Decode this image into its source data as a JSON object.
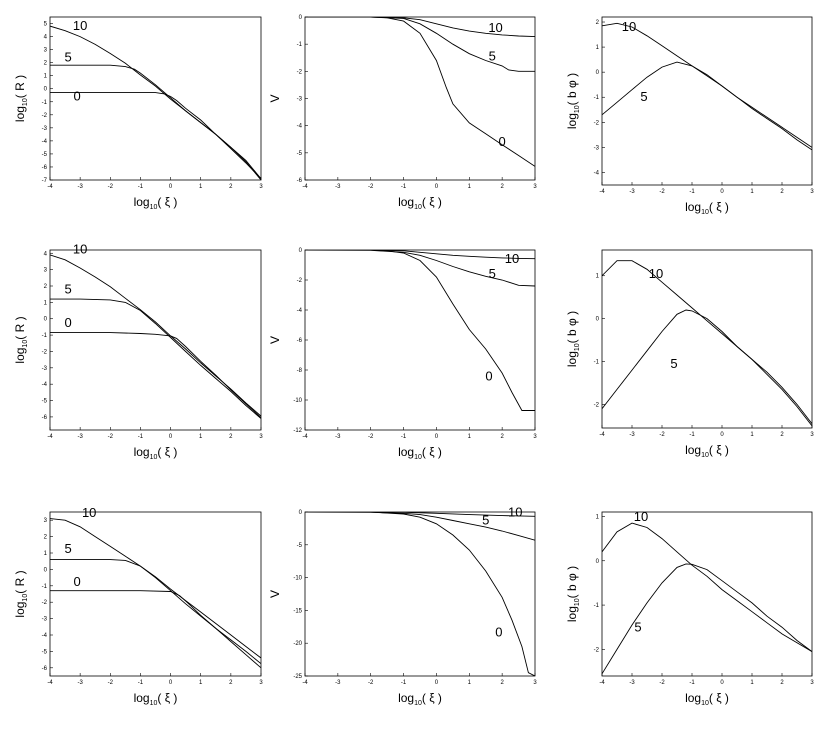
{
  "chart_data": [
    {
      "type": "line",
      "xlabel": "log10( ξ )",
      "ylabel": "log10( R )",
      "xlim": [
        -4,
        3
      ],
      "ylim": [
        -7,
        5.5
      ],
      "xticks": [
        -4,
        -3,
        -2,
        -1,
        0,
        1,
        2,
        3
      ],
      "yticks": [
        -7,
        -6,
        -5,
        -4,
        -3,
        -2,
        -1,
        0,
        1,
        2,
        3,
        4,
        5
      ],
      "series": [
        {
          "name": "10",
          "x": [
            -4,
            -3.5,
            -3,
            -2.5,
            -2,
            -1.5,
            -1,
            -0.5,
            0,
            0.5,
            1,
            1.5,
            2,
            2.5,
            3
          ],
          "y": [
            4.8,
            4.45,
            4.0,
            3.4,
            2.7,
            1.95,
            1.05,
            0.2,
            -0.8,
            -1.7,
            -2.6,
            -3.5,
            -4.5,
            -5.5,
            -6.9
          ]
        },
        {
          "name": "5",
          "x": [
            -4,
            -3,
            -2,
            -1.5,
            -1.2,
            -1,
            -0.5,
            0,
            0.5,
            1,
            1.5,
            2,
            2.5,
            3
          ],
          "y": [
            1.8,
            1.8,
            1.8,
            1.7,
            1.5,
            1.2,
            0.3,
            -0.7,
            -1.7,
            -2.6,
            -3.5,
            -4.5,
            -5.6,
            -7.0
          ]
        },
        {
          "name": "0",
          "x": [
            -4,
            -3,
            -2,
            -1,
            -0.5,
            -0.2,
            0,
            0.2,
            0.5,
            1,
            1.5,
            2,
            2.5,
            3
          ],
          "y": [
            -0.3,
            -0.3,
            -0.3,
            -0.3,
            -0.3,
            -0.4,
            -0.6,
            -0.9,
            -1.5,
            -2.4,
            -3.5,
            -4.6,
            -5.7,
            -6.9
          ]
        }
      ]
    },
    {
      "type": "line",
      "xlabel": "log10( ξ )",
      "ylabel": "V",
      "xlim": [
        -4,
        3
      ],
      "ylim": [
        -6,
        0
      ],
      "xticks": [
        -4,
        -3,
        -2,
        -1,
        0,
        1,
        2,
        3
      ],
      "yticks": [
        -6,
        -5,
        -4,
        -3,
        -2,
        -1,
        0
      ],
      "series": [
        {
          "name": "10",
          "x": [
            -4,
            -2,
            -1,
            -0.5,
            0,
            0.5,
            1,
            1.5,
            2,
            2.5,
            3
          ],
          "y": [
            0,
            0,
            -0.03,
            -0.1,
            -0.25,
            -0.4,
            -0.52,
            -0.6,
            -0.66,
            -0.7,
            -0.72
          ]
        },
        {
          "name": "5",
          "x": [
            -4,
            -2,
            -1,
            -0.5,
            0,
            0.5,
            1,
            1.5,
            2,
            2.2,
            2.5,
            3
          ],
          "y": [
            0,
            0,
            -0.05,
            -0.25,
            -0.6,
            -1.0,
            -1.35,
            -1.6,
            -1.8,
            -1.95,
            -2.0,
            -2.0
          ]
        },
        {
          "name": "0",
          "x": [
            -4,
            -2,
            -1.5,
            -1,
            -0.5,
            0,
            0.3,
            0.5,
            1,
            1.5,
            2,
            2.5,
            3
          ],
          "y": [
            0,
            0,
            -0.03,
            -0.15,
            -0.6,
            -1.6,
            -2.6,
            -3.2,
            -3.9,
            -4.3,
            -4.7,
            -5.1,
            -5.5
          ]
        }
      ]
    },
    {
      "type": "line",
      "xlabel": "log10( b φ )",
      "ylabel": "log10( b φ )",
      "xaxis_label": "log10( ξ )",
      "xlim": [
        -4,
        3
      ],
      "ylim": [
        -4.5,
        2.2
      ],
      "xticks": [
        -4,
        -3,
        -2,
        -1,
        0,
        1,
        2,
        3
      ],
      "yticks": [
        -4,
        -3,
        -2,
        -1,
        0,
        1,
        2
      ],
      "series": [
        {
          "name": "10",
          "x": [
            -4,
            -3.5,
            -3,
            -2.5,
            -2,
            -1.5,
            -1,
            -0.5,
            0,
            0.5,
            1,
            1.5,
            2,
            2.5,
            3
          ],
          "y": [
            1.85,
            1.95,
            1.8,
            1.45,
            1.05,
            0.65,
            0.25,
            -0.15,
            -0.55,
            -1.0,
            -1.4,
            -1.8,
            -2.2,
            -2.6,
            -3.0
          ]
        },
        {
          "name": "5",
          "x": [
            -4,
            -3.5,
            -3,
            -2.5,
            -2,
            -1.5,
            -1,
            -0.5,
            0,
            0.5,
            1,
            1.5,
            2,
            2.5,
            3
          ],
          "y": [
            -1.7,
            -1.2,
            -0.7,
            -0.2,
            0.2,
            0.4,
            0.25,
            -0.1,
            -0.55,
            -1.0,
            -1.45,
            -1.85,
            -2.25,
            -2.7,
            -3.1
          ]
        }
      ]
    },
    {
      "type": "line",
      "xlabel": "log10( ξ )",
      "ylabel": "log10( R )",
      "xlim": [
        -4,
        3
      ],
      "ylim": [
        -6.8,
        4.2
      ],
      "xticks": [
        -4,
        -3,
        -2,
        -1,
        0,
        1,
        2,
        3
      ],
      "yticks": [
        -6,
        -5,
        -4,
        -3,
        -2,
        -1,
        0,
        1,
        2,
        3,
        4
      ],
      "series": [
        {
          "name": "10",
          "x": [
            -4,
            -3.5,
            -3,
            -2.5,
            -2,
            -1.5,
            -1,
            -0.5,
            0,
            0.5,
            1,
            1.5,
            2,
            2.5,
            3
          ],
          "y": [
            3.9,
            3.6,
            3.1,
            2.55,
            1.95,
            1.25,
            0.55,
            -0.2,
            -1.05,
            -1.85,
            -2.7,
            -3.5,
            -4.3,
            -5.15,
            -5.95
          ]
        },
        {
          "name": "5",
          "x": [
            -4,
            -3,
            -2,
            -1.5,
            -1,
            -0.5,
            0,
            0.5,
            1,
            1.5,
            2,
            2.5,
            3
          ],
          "y": [
            1.2,
            1.2,
            1.15,
            1.0,
            0.5,
            -0.3,
            -1.15,
            -2.0,
            -2.85,
            -3.65,
            -4.45,
            -5.3,
            -6.1
          ]
        },
        {
          "name": "0",
          "x": [
            -4,
            -3,
            -2,
            -1,
            -0.5,
            0,
            0.2,
            0.5,
            1,
            1.5,
            2,
            2.5,
            3
          ],
          "y": [
            -0.85,
            -0.85,
            -0.85,
            -0.9,
            -0.95,
            -1.05,
            -1.2,
            -1.7,
            -2.6,
            -3.45,
            -4.35,
            -5.2,
            -6.05
          ]
        }
      ]
    },
    {
      "type": "line",
      "xlabel": "log10( ξ )",
      "ylabel": "V",
      "xlim": [
        -4,
        3
      ],
      "ylim": [
        -12,
        0
      ],
      "xticks": [
        -4,
        -3,
        -2,
        -1,
        0,
        1,
        2,
        3
      ],
      "yticks": [
        -12,
        -10,
        -8,
        -6,
        -4,
        -2,
        0
      ],
      "series": [
        {
          "name": "10",
          "x": [
            -4,
            -2,
            -1,
            -0.5,
            0,
            0.5,
            1,
            1.5,
            2,
            2.5,
            3
          ],
          "y": [
            0,
            0,
            -0.05,
            -0.15,
            -0.25,
            -0.35,
            -0.42,
            -0.48,
            -0.53,
            -0.56,
            -0.58
          ]
        },
        {
          "name": "5",
          "x": [
            -4,
            -2,
            -1,
            -0.5,
            0,
            0.5,
            1,
            1.5,
            2,
            2.5,
            3
          ],
          "y": [
            0,
            -0.02,
            -0.15,
            -0.35,
            -0.7,
            -1.1,
            -1.45,
            -1.75,
            -2.0,
            -2.35,
            -2.4
          ]
        },
        {
          "name": "0",
          "x": [
            -4,
            -2,
            -1.5,
            -1,
            -0.5,
            0,
            0.5,
            1,
            1.5,
            2,
            2.3,
            2.6,
            3
          ],
          "y": [
            0,
            0,
            -0.05,
            -0.2,
            -0.7,
            -1.8,
            -3.6,
            -5.3,
            -6.6,
            -8.2,
            -9.5,
            -10.7,
            -10.7
          ]
        }
      ]
    },
    {
      "type": "line",
      "xlabel": "log10( ξ )",
      "ylabel": "log10( b φ )",
      "xlim": [
        -4,
        3
      ],
      "ylim": [
        -2.55,
        1.6
      ],
      "xticks": [
        -4,
        -3,
        -2,
        -1,
        0,
        1,
        2,
        3
      ],
      "yticks": [
        -2,
        -1,
        0,
        1
      ],
      "series": [
        {
          "name": "10",
          "x": [
            -4,
            -3.5,
            -3,
            -2.5,
            -2,
            -1.5,
            -1,
            -0.5,
            0,
            0.5,
            1,
            1.5,
            2,
            2.5,
            3
          ],
          "y": [
            1.0,
            1.35,
            1.35,
            1.15,
            0.85,
            0.55,
            0.25,
            -0.05,
            -0.35,
            -0.65,
            -0.95,
            -1.25,
            -1.6,
            -2.0,
            -2.45
          ]
        },
        {
          "name": "5",
          "x": [
            -4,
            -3.5,
            -3,
            -2.5,
            -2,
            -1.5,
            -1.2,
            -1,
            -0.5,
            0,
            0.5,
            1,
            1.5,
            2,
            2.5,
            3
          ],
          "y": [
            -2.1,
            -1.65,
            -1.2,
            -0.75,
            -0.3,
            0.1,
            0.2,
            0.18,
            0.0,
            -0.3,
            -0.65,
            -0.95,
            -1.3,
            -1.65,
            -2.05,
            -2.5
          ]
        }
      ]
    },
    {
      "type": "line",
      "xlabel": "log10( ξ )",
      "ylabel": "log10( R )",
      "xlim": [
        -4,
        3
      ],
      "ylim": [
        -6.5,
        3.5
      ],
      "xticks": [
        -4,
        -3,
        -2,
        -1,
        0,
        1,
        2,
        3
      ],
      "yticks": [
        -6,
        -5,
        -4,
        -3,
        -2,
        -1,
        0,
        1,
        2,
        3
      ],
      "series": [
        {
          "name": "10",
          "x": [
            -4,
            -3.5,
            -3,
            -2.5,
            -2,
            -1.5,
            -1,
            -0.5,
            0,
            0.5,
            1,
            1.5,
            2,
            2.5,
            3
          ],
          "y": [
            3.1,
            3.0,
            2.6,
            2.0,
            1.4,
            0.8,
            0.2,
            -0.45,
            -1.2,
            -1.9,
            -2.6,
            -3.3,
            -4.0,
            -4.7,
            -5.4
          ]
        },
        {
          "name": "5",
          "x": [
            -4,
            -3,
            -2,
            -1.5,
            -1,
            -0.5,
            0,
            0.5,
            1,
            1.5,
            2,
            2.5,
            3
          ],
          "y": [
            0.6,
            0.6,
            0.6,
            0.55,
            0.2,
            -0.5,
            -1.3,
            -2.1,
            -2.85,
            -3.6,
            -4.3,
            -5.0,
            -5.75
          ]
        },
        {
          "name": "0",
          "x": [
            -4,
            -3,
            -2,
            -1,
            0,
            0.3,
            0.6,
            1,
            1.5,
            2,
            2.5,
            3
          ],
          "y": [
            -1.3,
            -1.3,
            -1.3,
            -1.3,
            -1.35,
            -1.6,
            -2.1,
            -2.8,
            -3.6,
            -4.4,
            -5.2,
            -6.0
          ]
        }
      ]
    },
    {
      "type": "line",
      "xlabel": "log10( ξ )",
      "ylabel": "V",
      "xlim": [
        -4,
        3
      ],
      "ylim": [
        -25,
        0
      ],
      "xticks": [
        -4,
        -3,
        -2,
        -1,
        0,
        1,
        2,
        3
      ],
      "yticks": [
        -25,
        -20,
        -15,
        -10,
        -5,
        0
      ],
      "series": [
        {
          "name": "10",
          "x": [
            -4,
            -2,
            -1,
            0,
            1,
            2,
            3
          ],
          "y": [
            0,
            0,
            -0.05,
            -0.2,
            -0.4,
            -0.55,
            -0.65
          ]
        },
        {
          "name": "5",
          "x": [
            -4,
            -2,
            -1,
            -0.5,
            0,
            0.5,
            1,
            1.5,
            2,
            2.5,
            3
          ],
          "y": [
            0,
            -0.05,
            -0.2,
            -0.4,
            -0.8,
            -1.3,
            -1.8,
            -2.3,
            -2.9,
            -3.6,
            -4.3
          ]
        },
        {
          "name": "0",
          "x": [
            -4,
            -2,
            -1,
            -0.5,
            0,
            0.5,
            1,
            1.5,
            2,
            2.3,
            2.6,
            2.8,
            3
          ],
          "y": [
            0,
            0,
            -0.3,
            -0.8,
            -1.8,
            -3.5,
            -5.8,
            -9.0,
            -13.0,
            -16.5,
            -20.5,
            -24.5,
            -25
          ]
        }
      ]
    },
    {
      "type": "line",
      "xlabel": "log10( ξ )",
      "ylabel": "log10( b φ )",
      "xlim": [
        -4,
        3
      ],
      "ylim": [
        -2.6,
        1.1
      ],
      "xticks": [
        -4,
        -3,
        -2,
        -1,
        0,
        1,
        2,
        3
      ],
      "yticks": [
        -2,
        -1,
        0,
        1
      ],
      "series": [
        {
          "name": "10",
          "x": [
            -4,
            -3.5,
            -3,
            -2.5,
            -2,
            -1.5,
            -1,
            -0.5,
            0,
            0.5,
            1,
            1.5,
            2,
            2.5,
            3
          ],
          "y": [
            0.2,
            0.65,
            0.85,
            0.75,
            0.5,
            0.2,
            -0.1,
            -0.35,
            -0.65,
            -0.9,
            -1.15,
            -1.4,
            -1.65,
            -1.85,
            -2.05
          ]
        },
        {
          "name": "5",
          "x": [
            -4,
            -3.5,
            -3,
            -2.5,
            -2,
            -1.5,
            -1.2,
            -1,
            -0.5,
            0,
            0.5,
            1,
            1.5,
            2,
            2.5,
            3
          ],
          "y": [
            -2.55,
            -2.0,
            -1.45,
            -0.95,
            -0.5,
            -0.15,
            -0.07,
            -0.08,
            -0.2,
            -0.45,
            -0.7,
            -0.95,
            -1.25,
            -1.5,
            -1.8,
            -2.05
          ]
        }
      ]
    }
  ]
}
